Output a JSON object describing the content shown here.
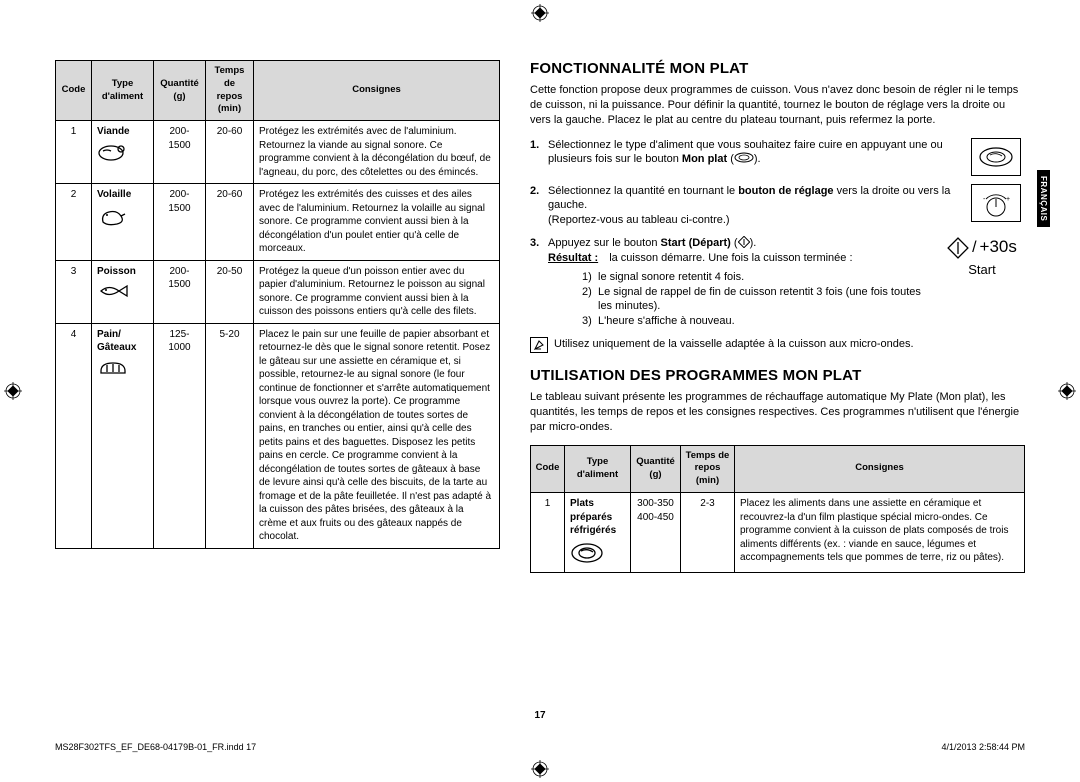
{
  "lang_tab": "FRANÇAIS",
  "table1": {
    "headers": [
      "Code",
      "Type d'aliment",
      "Quantité (g)",
      "Temps de repos (min)",
      "Consignes"
    ],
    "rows": [
      {
        "code": "1",
        "type": "Viande",
        "icon": "meat",
        "qty": "200-1500",
        "rest": "20-60",
        "instr": "Protégez les extrémités avec de l'aluminium. Retournez la viande au signal sonore. Ce programme convient à la décongélation du bœuf, de l'agneau, du porc, des côtelettes ou des émincés."
      },
      {
        "code": "2",
        "type": "Volaille",
        "icon": "poultry",
        "qty": "200-1500",
        "rest": "20-60",
        "instr": "Protégez les extrémités des cuisses et des ailes avec de l'aluminium. Retournez la volaille au signal sonore. Ce programme convient aussi bien à la décongélation d'un poulet entier qu'à celle de morceaux."
      },
      {
        "code": "3",
        "type": "Poisson",
        "icon": "fish",
        "qty": "200-1500",
        "rest": "20-50",
        "instr": "Protégez la queue d'un poisson entier avec du papier d'aluminium. Retournez le poisson au signal sonore. Ce programme convient aussi bien à la cuisson des poissons entiers qu'à celle des filets."
      },
      {
        "code": "4",
        "type": "Pain/ Gâteaux",
        "icon": "bread",
        "qty": "125-1000",
        "rest": "5-20",
        "instr": "Placez le pain sur une feuille de papier absorbant et retournez-le dès que le signal sonore retentit. Posez le gâteau sur une assiette en céramique et, si possible, retournez-le au signal sonore (le four continue de fonctionner et s'arrête automatiquement lorsque vous ouvrez la porte). Ce programme convient à la décongélation de toutes sortes de pains, en tranches ou entier, ainsi qu'à celle des petits pains et des baguettes. Disposez les petits pains en cercle. Ce programme convient à la décongélation de toutes sortes de gâteaux à base de levure ainsi qu'à celle des biscuits, de la tarte au fromage et de la pâte feuilletée. Il n'est pas adapté à la cuisson des pâtes brisées, des gâteaux à la crème et aux fruits ou des gâteaux nappés de chocolat."
      }
    ]
  },
  "section1": {
    "title": "FONCTIONNALITÉ MON PLAT",
    "intro": "Cette fonction propose deux programmes de cuisson. Vous n'avez donc besoin de régler ni le temps de cuisson, ni la puissance. Pour définir la quantité, tournez le bouton de réglage vers la droite ou vers la gauche. Placez le plat au centre du plateau tournant, puis refermez la porte.",
    "step1_pre": "Sélectionnez le type d'aliment que vous souhaitez faire cuire en appuyant une ou plusieurs fois sur le bouton ",
    "step1_bold": "Mon plat",
    "step1_post": " (      ).",
    "step2_pre": "Sélectionnez la quantité en tournant le ",
    "step2_bold": "bouton de réglage",
    "step2_mid": " vers la droite ou vers la gauche.",
    "step2_sub": "(Reportez-vous au tableau ci-contre.)",
    "step3_pre": "Appuyez sur le bouton ",
    "step3_bold": "Start (Départ)",
    "step3_post": " (     ).",
    "step3_result_label": "Résultat :",
    "step3_result": "la cuisson démarre. Une fois la cuisson terminée :",
    "step3_sub1": "le signal sonore retentit 4 fois.",
    "step3_sub2": "Le signal de rappel de fin de cuisson retentit 3 fois (une fois toutes les minutes).",
    "step3_sub3": "L'heure s'affiche à nouveau.",
    "start_label": "Start",
    "start_time": "+30s",
    "note": "Utilisez uniquement de la vaisselle adaptée à la cuisson aux micro-ondes."
  },
  "section2": {
    "title": "UTILISATION DES PROGRAMMES MON PLAT",
    "intro": "Le tableau suivant présente les programmes de réchauffage automatique My Plate (Mon plat), les quantités, les temps de repos et les consignes respectives. Ces programmes n'utilisent que l'énergie par micro-ondes.",
    "headers": [
      "Code",
      "Type d'aliment",
      "Quantité (g)",
      "Temps de repos (min)",
      "Consignes"
    ],
    "rows": [
      {
        "code": "1",
        "type": "Plats préparés réfrigérés",
        "icon": "plate",
        "qty": "300-350 400-450",
        "rest": "2-3",
        "instr": "Placez les aliments dans une assiette en céramique et recouvrez-la d'un film plastique spécial micro-ondes. Ce programme convient à la cuisson de plats composés de trois aliments différents (ex. : viande en sauce, légumes et accompagnements tels que pommes de terre, riz ou pâtes)."
      }
    ]
  },
  "page_number": "17",
  "footer_left": "MS28F302TFS_EF_DE68-04179B-01_FR.indd   17",
  "footer_right": "4/1/2013   2:58:44 PM"
}
